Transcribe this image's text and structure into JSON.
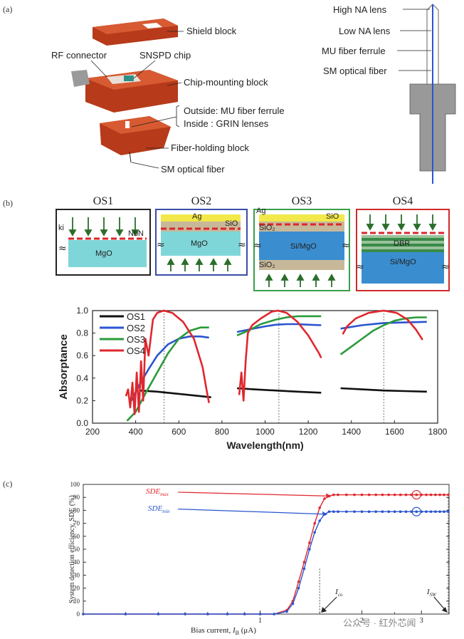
{
  "panel_a": {
    "label": "(a)",
    "labels": {
      "shield_block": "Shield block",
      "rf_connector": "RF connector",
      "snspd_chip": "SNSPD chip",
      "chip_mounting_block": "Chip-mounting block",
      "outside": "Outside: MU fiber ferrule",
      "inside": "Inside : GRIN lenses",
      "fiber_holding_block": "Fiber-holding block",
      "sm_optical_fiber": "SM optical fiber"
    },
    "lens_labels": {
      "high_na": "High NA lens",
      "low_na": "Low NA lens",
      "mu_ferrule": "MU fiber ferrule",
      "sm_fiber": "SM optical fiber"
    }
  },
  "panel_b": {
    "label": "(b)",
    "structures": [
      {
        "title": "OS1",
        "labels": [
          "ki",
          "NbN",
          "MgO"
        ]
      },
      {
        "title": "OS2",
        "labels": [
          "Ag",
          "SiO",
          "MgO"
        ]
      },
      {
        "title": "OS3",
        "labels": [
          "Ag",
          "SiO",
          "SiO₂",
          "Si/MgO",
          "SiO₂"
        ]
      },
      {
        "title": "OS4",
        "labels": [
          "DBR",
          "Si/MgO"
        ]
      }
    ]
  },
  "chart_data": [
    {
      "type": "line",
      "xlabel": "Wavelength(nm)",
      "ylabel": "Absorptance",
      "xlim": [
        200,
        1800
      ],
      "ylim": [
        0.0,
        1.0
      ],
      "xticks": [
        "200",
        "400",
        "600",
        "800",
        "1000",
        "1200",
        "1400",
        "1600",
        "1800"
      ],
      "yticks": [
        "0.0",
        "0.2",
        "0.4",
        "0.6",
        "0.8",
        "1.0"
      ],
      "reference_lines": [
        532,
        1064,
        1550
      ],
      "legend_position": "top-left",
      "colors": {
        "OS1": "#111111",
        "OS2": "#2a55d0",
        "OS3": "#2a9a3a",
        "OS4": "#e0272d"
      },
      "series": [
        {
          "name": "OS1",
          "segments": [
            [
              [
                420,
                0.29
              ],
              [
                500,
                0.28
              ],
              [
                600,
                0.26
              ],
              [
                700,
                0.24
              ],
              [
                750,
                0.23
              ]
            ],
            [
              [
                870,
                0.31
              ],
              [
                950,
                0.3
              ],
              [
                1050,
                0.29
              ],
              [
                1150,
                0.28
              ],
              [
                1260,
                0.27
              ]
            ],
            [
              [
                1350,
                0.31
              ],
              [
                1450,
                0.3
              ],
              [
                1550,
                0.29
              ],
              [
                1650,
                0.285
              ],
              [
                1750,
                0.28
              ]
            ]
          ]
        },
        {
          "name": "OS2",
          "segments": [
            [
              [
                380,
                0.2
              ],
              [
                420,
                0.35
              ],
              [
                460,
                0.48
              ],
              [
                500,
                0.6
              ],
              [
                550,
                0.7
              ],
              [
                600,
                0.75
              ],
              [
                650,
                0.77
              ],
              [
                700,
                0.77
              ],
              [
                740,
                0.76
              ]
            ],
            [
              [
                870,
                0.81
              ],
              [
                920,
                0.83
              ],
              [
                1000,
                0.86
              ],
              [
                1050,
                0.875
              ],
              [
                1100,
                0.88
              ],
              [
                1150,
                0.88
              ],
              [
                1200,
                0.875
              ],
              [
                1260,
                0.87
              ]
            ],
            [
              [
                1350,
                0.84
              ],
              [
                1450,
                0.87
              ],
              [
                1550,
                0.89
              ],
              [
                1650,
                0.895
              ],
              [
                1750,
                0.9
              ]
            ]
          ]
        },
        {
          "name": "OS3",
          "segments": [
            [
              [
                360,
                0.02
              ],
              [
                400,
                0.1
              ],
              [
                450,
                0.28
              ],
              [
                500,
                0.45
              ],
              [
                550,
                0.62
              ],
              [
                600,
                0.75
              ],
              [
                650,
                0.82
              ],
              [
                700,
                0.85
              ],
              [
                740,
                0.85
              ]
            ],
            [
              [
                870,
                0.78
              ],
              [
                920,
                0.82
              ],
              [
                980,
                0.88
              ],
              [
                1050,
                0.92
              ],
              [
                1100,
                0.94
              ],
              [
                1150,
                0.95
              ],
              [
                1200,
                0.95
              ],
              [
                1260,
                0.95
              ]
            ],
            [
              [
                1350,
                0.61
              ],
              [
                1400,
                0.68
              ],
              [
                1450,
                0.75
              ],
              [
                1500,
                0.82
              ],
              [
                1550,
                0.87
              ],
              [
                1600,
                0.91
              ],
              [
                1650,
                0.93
              ],
              [
                1700,
                0.94
              ],
              [
                1750,
                0.94
              ]
            ]
          ]
        },
        {
          "name": "OS4",
          "segments": [
            [
              [
                355,
                0.24
              ],
              [
                365,
                0.3
              ],
              [
                375,
                0.14
              ],
              [
                385,
                0.36
              ],
              [
                395,
                0.08
              ],
              [
                405,
                0.45
              ],
              [
                415,
                0.1
              ],
              [
                425,
                0.55
              ],
              [
                435,
                0.2
              ],
              [
                445,
                0.75
              ],
              [
                460,
                0.6
              ],
              [
                480,
                0.92
              ],
              [
                500,
                0.98
              ],
              [
                530,
                1.0
              ],
              [
                570,
                0.98
              ],
              [
                620,
                0.9
              ],
              [
                670,
                0.75
              ],
              [
                710,
                0.5
              ],
              [
                730,
                0.28
              ],
              [
                740,
                0.18
              ]
            ],
            [
              [
                880,
                0.25
              ],
              [
                890,
                0.45
              ],
              [
                900,
                0.2
              ],
              [
                910,
                0.55
              ],
              [
                920,
                0.8
              ],
              [
                940,
                0.87
              ],
              [
                980,
                0.93
              ],
              [
                1030,
                0.99
              ],
              [
                1060,
                1.0
              ],
              [
                1100,
                0.98
              ],
              [
                1150,
                0.9
              ],
              [
                1200,
                0.78
              ],
              [
                1250,
                0.62
              ],
              [
                1260,
                0.58
              ]
            ],
            [
              [
                1360,
                0.79
              ],
              [
                1380,
                0.86
              ],
              [
                1420,
                0.93
              ],
              [
                1480,
                0.98
              ],
              [
                1550,
                1.0
              ],
              [
                1610,
                0.98
              ],
              [
                1660,
                0.92
              ],
              [
                1700,
                0.83
              ],
              [
                1730,
                0.74
              ]
            ]
          ]
        }
      ]
    },
    {
      "type": "line",
      "xlabel": "Bias current, I_B (μA)",
      "ylabel": "System detection efficiency, SDE (%)",
      "ylim": [
        0,
        100
      ],
      "yticks": [
        "0",
        "10",
        "20",
        "30",
        "40",
        "50",
        "60",
        "70",
        "80",
        "90",
        "100"
      ],
      "xticks": [
        "1",
        "2",
        "3"
      ],
      "annotations": [
        "SDE_max",
        "SDE_min",
        "I_co",
        "I_SW"
      ],
      "colors": {
        "SDE_max": "#e0272d",
        "SDE_min": "#2a55d0"
      },
      "series": [
        {
          "name": "SDE_max",
          "x": [
            0.3,
            0.4,
            0.5,
            0.6,
            0.7,
            0.8,
            0.9,
            1.0,
            1.1,
            1.2,
            1.25,
            1.3,
            1.35,
            1.4,
            1.45,
            1.5,
            1.55,
            1.6,
            1.65,
            1.7,
            1.8,
            1.9,
            2.0,
            2.1,
            2.2,
            2.3,
            2.4,
            2.5,
            2.6,
            2.7,
            2.8,
            2.9,
            3.0,
            3.1,
            3.2,
            3.3,
            3.4,
            3.5,
            3.6
          ],
          "y": [
            0,
            0,
            0,
            0,
            0,
            0,
            0,
            0,
            0,
            3,
            10,
            25,
            40,
            55,
            70,
            82,
            89,
            91,
            92,
            92,
            92,
            92,
            92,
            92,
            92,
            92,
            92,
            92,
            92,
            92,
            92,
            92,
            92,
            92,
            92,
            92,
            92,
            92,
            92
          ]
        },
        {
          "name": "SDE_min",
          "x": [
            0.3,
            0.4,
            0.5,
            0.6,
            0.7,
            0.8,
            0.9,
            1.0,
            1.1,
            1.2,
            1.25,
            1.3,
            1.35,
            1.4,
            1.45,
            1.5,
            1.55,
            1.6,
            1.65,
            1.7,
            1.8,
            1.9,
            2.0,
            2.1,
            2.2,
            2.3,
            2.4,
            2.5,
            2.6,
            2.7,
            2.8,
            2.9,
            3.0,
            3.1,
            3.2,
            3.3,
            3.4,
            3.5,
            3.6
          ],
          "y": [
            0,
            0,
            0,
            0,
            0,
            0,
            0,
            0,
            0,
            2,
            8,
            20,
            35,
            50,
            63,
            72,
            77,
            79,
            79,
            79,
            79,
            79,
            79,
            79,
            79,
            79,
            79,
            79,
            79,
            79,
            79,
            79,
            79,
            79,
            79,
            79,
            79,
            79,
            79
          ]
        }
      ]
    }
  ],
  "watermark": "公众号 · 红外芯闻"
}
